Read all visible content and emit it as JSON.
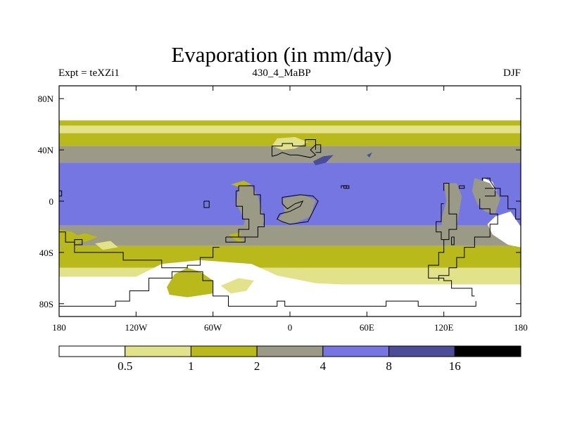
{
  "chart_data": {
    "type": "heatmap",
    "title": "Evaporation (in mm/day)",
    "subtitle_left": "Expt = teXZi1",
    "subtitle_center": "430_4_MaBP",
    "subtitle_right": "DJF",
    "x_ticks": [
      {
        "value": -180,
        "label": "180"
      },
      {
        "value": -120,
        "label": "120W"
      },
      {
        "value": -60,
        "label": "60W"
      },
      {
        "value": 0,
        "label": "0"
      },
      {
        "value": 60,
        "label": "60E"
      },
      {
        "value": 120,
        "label": "120E"
      },
      {
        "value": 180,
        "label": "180"
      }
    ],
    "y_ticks": [
      {
        "value": 80,
        "label": "80N"
      },
      {
        "value": 40,
        "label": "40N"
      },
      {
        "value": 0,
        "label": "0"
      },
      {
        "value": -40,
        "label": "40S"
      },
      {
        "value": -80,
        "label": "80S"
      }
    ],
    "xlim": [
      -180,
      180
    ],
    "ylim": [
      -90,
      90
    ],
    "levels": [
      0.5,
      1,
      2,
      4,
      8,
      16
    ],
    "level_labels": [
      "0.5",
      "1",
      "2",
      "4",
      "8",
      "16"
    ],
    "colors": [
      "#ffffff",
      "#e2e28a",
      "#b9b91c",
      "#9a9a86",
      "#7676e2",
      "#4c4c98",
      "#000000"
    ],
    "bands": [
      {
        "lat_range": [
          63,
          90
        ],
        "bin": 0
      },
      {
        "lat_range": [
          59,
          63
        ],
        "bin": 2
      },
      {
        "lat_range": [
          53,
          59
        ],
        "bin": 1
      },
      {
        "lat_range": [
          43,
          53
        ],
        "bin": 2
      },
      {
        "lat_range": [
          30,
          43
        ],
        "bin": 3
      },
      {
        "lat_range": [
          -19,
          30
        ],
        "bin": 4
      },
      {
        "lat_range": [
          -35,
          -19
        ],
        "bin": 3
      },
      {
        "lat_range": [
          -52,
          -35
        ],
        "bin": 2
      },
      {
        "lat_range": [
          -65,
          -52
        ],
        "bin": 1
      },
      {
        "lat_range": [
          -90,
          -65
        ],
        "bin": 0
      }
    ],
    "features": [
      {
        "bin": 0,
        "points": [
          [
            -180,
            -59
          ],
          [
            -120,
            -59
          ],
          [
            -100,
            -49
          ],
          [
            -70,
            -46
          ],
          [
            -30,
            -49
          ],
          [
            -10,
            -58
          ],
          [
            20,
            -64
          ],
          [
            60,
            -66
          ],
          [
            120,
            -66
          ],
          [
            170,
            -65
          ],
          [
            180,
            -65
          ],
          [
            180,
            -90
          ],
          [
            -180,
            -90
          ]
        ]
      },
      {
        "bin": 2,
        "points": [
          [
            -96,
            -67
          ],
          [
            -90,
            -57
          ],
          [
            -80,
            -52
          ],
          [
            -70,
            -55
          ],
          [
            -60,
            -62
          ],
          [
            -60,
            -72
          ],
          [
            -80,
            -75
          ],
          [
            -94,
            -73
          ]
        ]
      },
      {
        "bin": 1,
        "points": [
          [
            -54,
            -66
          ],
          [
            -40,
            -60
          ],
          [
            -28,
            -62
          ],
          [
            -34,
            -70
          ],
          [
            -46,
            -72
          ]
        ]
      },
      {
        "bin": 0,
        "points": [
          [
            160,
            -12
          ],
          [
            172,
            -8
          ],
          [
            180,
            -20
          ],
          [
            180,
            -36
          ],
          [
            170,
            -34
          ],
          [
            158,
            -26
          ],
          [
            154,
            -18
          ]
        ]
      },
      {
        "bin": 0,
        "points": [
          [
            151,
            18
          ],
          [
            158,
            15
          ],
          [
            161,
            8
          ],
          [
            156,
            6
          ],
          [
            150,
            10
          ]
        ]
      },
      {
        "bin": 1,
        "points": [
          [
            -14,
            43
          ],
          [
            -10,
            49
          ],
          [
            4,
            50
          ],
          [
            14,
            46
          ],
          [
            4,
            41
          ],
          [
            -6,
            40
          ]
        ]
      },
      {
        "bin": 5,
        "points": [
          [
            18,
            31
          ],
          [
            26,
            35
          ],
          [
            34,
            36
          ],
          [
            28,
            30
          ],
          [
            20,
            28
          ]
        ]
      },
      {
        "bin": 5,
        "points": [
          [
            60,
            36
          ],
          [
            64,
            38
          ],
          [
            62,
            34
          ]
        ]
      },
      {
        "bin": 2,
        "points": [
          [
            -46,
            13
          ],
          [
            -36,
            16
          ],
          [
            -30,
            13
          ],
          [
            -40,
            11
          ]
        ]
      },
      {
        "bin": 2,
        "points": [
          [
            -170,
            -28
          ],
          [
            -160,
            -25
          ],
          [
            -150,
            -28
          ],
          [
            -160,
            -32
          ]
        ]
      },
      {
        "bin": 1,
        "points": [
          [
            -152,
            -33
          ],
          [
            -140,
            -31
          ],
          [
            -134,
            -36
          ],
          [
            -146,
            -38
          ]
        ]
      },
      {
        "bin": 2,
        "points": [
          [
            -48,
            -26
          ],
          [
            -36,
            -24
          ],
          [
            -30,
            -28
          ],
          [
            -40,
            -32
          ]
        ]
      },
      {
        "bin": 3,
        "points": [
          [
            -40,
            12
          ],
          [
            -30,
            12
          ],
          [
            -25,
            4
          ],
          [
            -20,
            -15
          ],
          [
            -25,
            -30
          ],
          [
            -40,
            -30
          ],
          [
            -35,
            -15
          ],
          [
            -42,
            -2
          ]
        ]
      },
      {
        "bin": 3,
        "points": [
          [
            -6,
            2
          ],
          [
            10,
            5
          ],
          [
            20,
            1
          ],
          [
            16,
            -12
          ],
          [
            2,
            -18
          ],
          [
            -10,
            -15
          ],
          [
            -4,
            -8
          ]
        ]
      },
      {
        "bin": 3,
        "points": [
          [
            120,
            14
          ],
          [
            130,
            14
          ],
          [
            134,
            4
          ],
          [
            130,
            -20
          ],
          [
            120,
            -30
          ],
          [
            118,
            -14
          ],
          [
            122,
            0
          ]
        ]
      },
      {
        "bin": 3,
        "points": [
          [
            144,
            18
          ],
          [
            156,
            14
          ],
          [
            164,
            2
          ],
          [
            160,
            -10
          ],
          [
            152,
            -8
          ],
          [
            146,
            -2
          ],
          [
            142,
            8
          ]
        ]
      },
      {
        "bin": 2,
        "points": [
          [
            -180,
            -22
          ],
          [
            -170,
            -24
          ],
          [
            -160,
            -30
          ],
          [
            -170,
            -36
          ],
          [
            -180,
            -34
          ]
        ]
      }
    ],
    "coastlines": [
      [
        [
          -180,
          -24
        ],
        [
          -175,
          -24
        ],
        [
          -175,
          -32
        ],
        [
          -168,
          -32
        ],
        [
          -168,
          -40
        ],
        [
          -130,
          -40
        ],
        [
          -130,
          -46
        ],
        [
          -100,
          -46
        ],
        [
          -100,
          -52
        ],
        [
          -80,
          -52
        ],
        [
          -80,
          -50
        ],
        [
          -70,
          -50
        ],
        [
          -70,
          -44
        ],
        [
          -60,
          -44
        ],
        [
          -60,
          -36
        ],
        [
          -55,
          -36
        ]
      ],
      [
        [
          -180,
          -82
        ],
        [
          -136,
          -82
        ],
        [
          -136,
          -78
        ],
        [
          -125,
          -78
        ],
        [
          -125,
          -70
        ],
        [
          -110,
          -70
        ],
        [
          -110,
          -60
        ],
        [
          -92,
          -60
        ],
        [
          -92,
          -55
        ],
        [
          -68,
          -55
        ],
        [
          -68,
          -62
        ],
        [
          -60,
          -62
        ],
        [
          -60,
          -74
        ],
        [
          -48,
          -74
        ],
        [
          -48,
          -82
        ],
        [
          -10,
          -82
        ],
        [
          -10,
          -78
        ],
        [
          -4,
          -78
        ],
        [
          -4,
          -82
        ],
        [
          75,
          -82
        ],
        [
          75,
          -78
        ],
        [
          100,
          -78
        ],
        [
          100,
          -82
        ],
        [
          145,
          -82
        ],
        [
          145,
          -78
        ]
      ],
      [
        [
          -40,
          12
        ],
        [
          -28,
          12
        ],
        [
          -28,
          5
        ],
        [
          -23,
          5
        ],
        [
          -23,
          -10
        ],
        [
          -20,
          -10
        ],
        [
          -20,
          -20
        ],
        [
          -25,
          -20
        ],
        [
          -25,
          -28
        ],
        [
          -40,
          -28
        ],
        [
          -40,
          -22
        ],
        [
          -32,
          -22
        ],
        [
          -32,
          -14
        ],
        [
          -37,
          -14
        ],
        [
          -37,
          -4
        ],
        [
          -42,
          -4
        ],
        [
          -42,
          8
        ],
        [
          -40,
          8
        ],
        [
          -40,
          12
        ]
      ],
      [
        [
          -50,
          -28
        ],
        [
          -35,
          -28
        ],
        [
          -35,
          -32
        ],
        [
          -50,
          -32
        ],
        [
          -50,
          -28
        ]
      ],
      [
        [
          -67,
          0
        ],
        [
          -63,
          0
        ],
        [
          -63,
          -5
        ],
        [
          -67,
          -5
        ],
        [
          -67,
          0
        ]
      ],
      [
        [
          -6,
          -2
        ],
        [
          -6,
          3
        ],
        [
          8,
          5
        ],
        [
          18,
          4
        ],
        [
          22,
          0
        ],
        [
          18,
          -8
        ],
        [
          14,
          -16
        ],
        [
          0,
          -18
        ],
        [
          -6,
          -16
        ],
        [
          -10,
          -14
        ],
        [
          -8,
          -10
        ],
        [
          0,
          -8
        ],
        [
          8,
          -4
        ],
        [
          10,
          0
        ],
        [
          4,
          -2
        ],
        [
          -2,
          -6
        ],
        [
          -6,
          -2
        ]
      ],
      [
        [
          -14,
          35
        ],
        [
          -14,
          43
        ],
        [
          -6,
          43
        ],
        [
          -6,
          45
        ],
        [
          2,
          45
        ],
        [
          2,
          43
        ],
        [
          12,
          43
        ],
        [
          12,
          48
        ],
        [
          20,
          48
        ],
        [
          20,
          44
        ],
        [
          16,
          40
        ],
        [
          20,
          36
        ],
        [
          16,
          34
        ],
        [
          6,
          36
        ],
        [
          0,
          36
        ],
        [
          -6,
          38
        ],
        [
          -10,
          36
        ],
        [
          -14,
          35
        ]
      ],
      [
        [
          20,
          40
        ],
        [
          20,
          44
        ],
        [
          24,
          44
        ],
        [
          24,
          38
        ],
        [
          20,
          38
        ]
      ],
      [
        [
          42,
          10
        ],
        [
          42,
          12
        ],
        [
          46,
          12
        ],
        [
          46,
          10
        ],
        [
          42,
          10
        ]
      ],
      [
        [
          120,
          8
        ],
        [
          120,
          14
        ],
        [
          124,
          14
        ],
        [
          124,
          -10
        ],
        [
          130,
          -10
        ],
        [
          130,
          -22
        ],
        [
          124,
          -22
        ],
        [
          124,
          -30
        ],
        [
          118,
          -30
        ],
        [
          118,
          -24
        ],
        [
          114,
          -24
        ],
        [
          114,
          -16
        ],
        [
          118,
          -16
        ],
        [
          118,
          -2
        ],
        [
          120,
          -2
        ]
      ],
      [
        [
          120,
          -30
        ],
        [
          120,
          -40
        ],
        [
          116,
          -40
        ],
        [
          116,
          -50
        ],
        [
          108,
          -50
        ],
        [
          108,
          -60
        ],
        [
          120,
          -60
        ],
        [
          120,
          -62
        ],
        [
          126,
          -62
        ],
        [
          126,
          -68
        ],
        [
          142,
          -68
        ],
        [
          142,
          -74
        ],
        [
          144,
          -74
        ]
      ],
      [
        [
          126,
          -28
        ],
        [
          128,
          -28
        ],
        [
          128,
          -34
        ],
        [
          126,
          -34
        ],
        [
          126,
          -28
        ]
      ],
      [
        [
          132,
          12
        ],
        [
          136,
          12
        ],
        [
          136,
          10
        ],
        [
          132,
          10
        ],
        [
          132,
          12
        ]
      ],
      [
        [
          150,
          16
        ],
        [
          150,
          18
        ],
        [
          156,
          18
        ],
        [
          156,
          16
        ],
        [
          160,
          10
        ],
        [
          164,
          10
        ],
        [
          164,
          4
        ],
        [
          170,
          4
        ],
        [
          170,
          -6
        ],
        [
          176,
          -6
        ],
        [
          176,
          -14
        ],
        [
          180,
          -14
        ]
      ],
      [
        [
          152,
          10
        ],
        [
          160,
          10
        ],
        [
          160,
          4
        ],
        [
          152,
          4
        ]
      ],
      [
        [
          148,
          2
        ],
        [
          148,
          -6
        ],
        [
          156,
          -6
        ],
        [
          156,
          -10
        ],
        [
          162,
          -10
        ],
        [
          162,
          -18
        ],
        [
          156,
          -18
        ],
        [
          156,
          -28
        ],
        [
          144,
          -28
        ],
        [
          144,
          -36
        ],
        [
          136,
          -36
        ],
        [
          136,
          -44
        ],
        [
          130,
          -44
        ],
        [
          130,
          -52
        ],
        [
          124,
          -52
        ],
        [
          124,
          -58
        ],
        [
          116,
          -58
        ],
        [
          116,
          -62
        ]
      ],
      [
        [
          40,
          10
        ],
        [
          40,
          12
        ],
        [
          44,
          12
        ],
        [
          44,
          10
        ]
      ],
      [
        [
          -168,
          -34
        ],
        [
          -162,
          -34
        ],
        [
          -162,
          -30
        ],
        [
          -168,
          -30
        ],
        [
          -168,
          -34
        ]
      ],
      [
        [
          -180,
          8
        ],
        [
          -178,
          8
        ],
        [
          -178,
          4
        ],
        [
          -180,
          4
        ]
      ]
    ]
  }
}
